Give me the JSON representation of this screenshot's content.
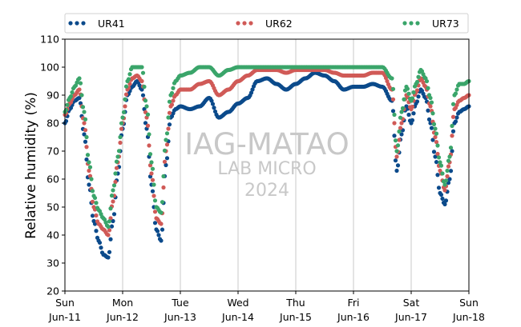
{
  "chart_data": {
    "type": "scatter",
    "title": "",
    "xlabel": "",
    "ylabel": "Relative humidity (%)",
    "ylim": [
      20,
      110
    ],
    "yticks": [
      20,
      30,
      40,
      50,
      60,
      70,
      80,
      90,
      100,
      110
    ],
    "xlim": [
      "2017-06-11",
      "2017-06-18"
    ],
    "xticks": [
      {
        "day": "Sun",
        "date": "Jun-11"
      },
      {
        "day": "Mon",
        "date": "Jun-12"
      },
      {
        "day": "Tue",
        "date": "Jun-13"
      },
      {
        "day": "Wed",
        "date": "Jun-14"
      },
      {
        "day": "Thu",
        "date": "Jun-15"
      },
      {
        "day": "Fri",
        "date": "Jun-16"
      },
      {
        "day": "Sat",
        "date": "Jun-17"
      },
      {
        "day": "Sun",
        "date": "Jun-18"
      }
    ],
    "grid": "vertical",
    "legend_position": "top",
    "watermark": [
      "IAG-MATAO",
      "LAB MICRO",
      "2024"
    ],
    "series": [
      {
        "name": "UR41",
        "color": "#0b4a8b",
        "x": [
          "2017-06-11 00:00",
          "2017-06-11 02:00",
          "2017-06-11 04:00",
          "2017-06-11 06:00",
          "2017-06-11 08:00",
          "2017-06-11 10:00",
          "2017-06-11 12:00",
          "2017-06-11 14:00",
          "2017-06-11 16:00",
          "2017-06-11 18:00",
          "2017-06-11 20:00",
          "2017-06-11 22:00",
          "2017-06-12 00:00",
          "2017-06-12 02:00",
          "2017-06-12 04:00",
          "2017-06-12 06:00",
          "2017-06-12 08:00",
          "2017-06-12 10:00",
          "2017-06-12 12:00",
          "2017-06-12 14:00",
          "2017-06-12 16:00",
          "2017-06-12 18:00",
          "2017-06-12 20:00",
          "2017-06-12 22:00",
          "2017-06-13 00:00",
          "2017-06-13 04:00",
          "2017-06-13 08:00",
          "2017-06-13 12:00",
          "2017-06-13 16:00",
          "2017-06-13 20:00",
          "2017-06-14 00:00",
          "2017-06-14 04:00",
          "2017-06-14 08:00",
          "2017-06-14 12:00",
          "2017-06-14 16:00",
          "2017-06-14 20:00",
          "2017-06-15 00:00",
          "2017-06-15 04:00",
          "2017-06-15 08:00",
          "2017-06-15 12:00",
          "2017-06-15 16:00",
          "2017-06-15 20:00",
          "2017-06-16 00:00",
          "2017-06-16 04:00",
          "2017-06-16 08:00",
          "2017-06-16 12:00",
          "2017-06-16 16:00",
          "2017-06-16 18:00",
          "2017-06-16 20:00",
          "2017-06-16 22:00",
          "2017-06-17 00:00",
          "2017-06-17 02:00",
          "2017-06-17 04:00",
          "2017-06-17 06:00",
          "2017-06-17 08:00",
          "2017-06-17 10:00",
          "2017-06-17 12:00",
          "2017-06-17 14:00",
          "2017-06-17 16:00",
          "2017-06-17 18:00",
          "2017-06-17 20:00",
          "2017-06-17 22:00",
          "2017-06-18 00:00"
        ],
        "y": [
          80,
          85,
          88,
          89,
          76,
          58,
          45,
          38,
          33,
          32,
          45,
          62,
          78,
          90,
          93,
          95,
          92,
          78,
          58,
          42,
          38,
          65,
          82,
          85,
          86,
          85,
          86,
          89,
          82,
          84,
          87,
          89,
          95,
          96,
          94,
          92,
          94,
          96,
          98,
          97,
          95,
          92,
          93,
          93,
          94,
          93,
          88,
          63,
          76,
          86,
          80,
          87,
          92,
          89,
          80,
          68,
          55,
          51,
          60,
          80,
          84,
          85,
          86
        ]
      },
      {
        "name": "UR62",
        "color": "#d05a57",
        "x": [
          "2017-06-11 00:00",
          "2017-06-11 02:00",
          "2017-06-11 04:00",
          "2017-06-11 06:00",
          "2017-06-11 08:00",
          "2017-06-11 10:00",
          "2017-06-11 12:00",
          "2017-06-11 14:00",
          "2017-06-11 16:00",
          "2017-06-11 18:00",
          "2017-06-11 20:00",
          "2017-06-11 22:00",
          "2017-06-12 00:00",
          "2017-06-12 02:00",
          "2017-06-12 04:00",
          "2017-06-12 06:00",
          "2017-06-12 08:00",
          "2017-06-12 10:00",
          "2017-06-12 12:00",
          "2017-06-12 14:00",
          "2017-06-12 16:00",
          "2017-06-12 18:00",
          "2017-06-12 20:00",
          "2017-06-12 22:00",
          "2017-06-13 00:00",
          "2017-06-13 04:00",
          "2017-06-13 08:00",
          "2017-06-13 12:00",
          "2017-06-13 16:00",
          "2017-06-13 20:00",
          "2017-06-14 00:00",
          "2017-06-14 04:00",
          "2017-06-14 08:00",
          "2017-06-14 12:00",
          "2017-06-14 16:00",
          "2017-06-14 20:00",
          "2017-06-15 00:00",
          "2017-06-15 04:00",
          "2017-06-15 08:00",
          "2017-06-15 12:00",
          "2017-06-15 16:00",
          "2017-06-15 20:00",
          "2017-06-16 00:00",
          "2017-06-16 04:00",
          "2017-06-16 08:00",
          "2017-06-16 12:00",
          "2017-06-16 16:00",
          "2017-06-16 18:00",
          "2017-06-16 20:00",
          "2017-06-16 22:00",
          "2017-06-17 00:00",
          "2017-06-17 02:00",
          "2017-06-17 04:00",
          "2017-06-17 06:00",
          "2017-06-17 08:00",
          "2017-06-17 10:00",
          "2017-06-17 12:00",
          "2017-06-17 14:00",
          "2017-06-17 16:00",
          "2017-06-17 18:00",
          "2017-06-17 20:00",
          "2017-06-17 22:00",
          "2017-06-18 00:00"
        ],
        "y": [
          83,
          87,
          90,
          92,
          80,
          63,
          50,
          44,
          42,
          40,
          52,
          66,
          80,
          92,
          96,
          97,
          95,
          82,
          62,
          46,
          44,
          70,
          86,
          90,
          92,
          92,
          94,
          95,
          90,
          92,
          95,
          97,
          99,
          99,
          99,
          98,
          99,
          99,
          99,
          99,
          98,
          97,
          97,
          97,
          98,
          98,
          92,
          68,
          80,
          90,
          85,
          91,
          96,
          93,
          86,
          75,
          63,
          56,
          66,
          85,
          88,
          89,
          90
        ]
      },
      {
        "name": "UR73",
        "color": "#3aa56a",
        "x": [
          "2017-06-11 00:00",
          "2017-06-11 02:00",
          "2017-06-11 04:00",
          "2017-06-11 06:00",
          "2017-06-11 08:00",
          "2017-06-11 10:00",
          "2017-06-11 12:00",
          "2017-06-11 14:00",
          "2017-06-11 16:00",
          "2017-06-11 18:00",
          "2017-06-11 20:00",
          "2017-06-11 22:00",
          "2017-06-12 00:00",
          "2017-06-12 02:00",
          "2017-06-12 04:00",
          "2017-06-12 06:00",
          "2017-06-12 08:00",
          "2017-06-12 10:00",
          "2017-06-12 12:00",
          "2017-06-12 14:00",
          "2017-06-12 16:00",
          "2017-06-12 18:00",
          "2017-06-12 20:00",
          "2017-06-12 22:00",
          "2017-06-13 00:00",
          "2017-06-13 04:00",
          "2017-06-13 08:00",
          "2017-06-13 12:00",
          "2017-06-13 16:00",
          "2017-06-13 20:00",
          "2017-06-14 00:00",
          "2017-06-14 04:00",
          "2017-06-14 08:00",
          "2017-06-14 12:00",
          "2017-06-14 16:00",
          "2017-06-14 20:00",
          "2017-06-15 00:00",
          "2017-06-15 04:00",
          "2017-06-15 08:00",
          "2017-06-15 12:00",
          "2017-06-15 16:00",
          "2017-06-15 20:00",
          "2017-06-16 00:00",
          "2017-06-16 04:00",
          "2017-06-16 08:00",
          "2017-06-16 12:00",
          "2017-06-16 16:00",
          "2017-06-16 18:00",
          "2017-06-16 20:00",
          "2017-06-16 22:00",
          "2017-06-17 00:00",
          "2017-06-17 02:00",
          "2017-06-17 04:00",
          "2017-06-17 06:00",
          "2017-06-17 08:00",
          "2017-06-17 10:00",
          "2017-06-17 12:00",
          "2017-06-17 14:00",
          "2017-06-17 16:00",
          "2017-06-17 18:00",
          "2017-06-17 20:00",
          "2017-06-17 22:00",
          "2017-06-18 00:00"
        ],
        "y": [
          84,
          89,
          93,
          96,
          84,
          66,
          54,
          49,
          46,
          43,
          56,
          68,
          82,
          95,
          100,
          100,
          100,
          86,
          66,
          50,
          48,
          74,
          90,
          95,
          97,
          98,
          100,
          100,
          97,
          99,
          100,
          100,
          100,
          100,
          100,
          100,
          100,
          100,
          100,
          100,
          100,
          100,
          100,
          100,
          100,
          100,
          96,
          70,
          84,
          93,
          88,
          94,
          99,
          96,
          89,
          78,
          66,
          58,
          68,
          90,
          94,
          94,
          95
        ]
      }
    ]
  }
}
